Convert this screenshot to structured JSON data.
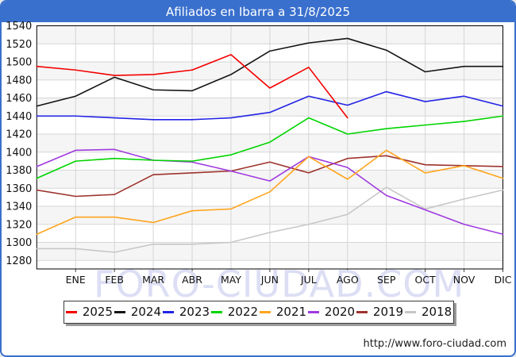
{
  "window": {
    "title": "Afiliados en Ibarra a 31/8/2025"
  },
  "footer": {
    "url": "http://www.foro-ciudad.com"
  },
  "watermark": {
    "text": "FORO-CIUDAD.COM",
    "color": "#dcdef4"
  },
  "colors": {
    "titlebar": "#3a70cd",
    "frame": "#3a70cd",
    "grid": "#d6d6d6",
    "band": "#f5f5f5",
    "axis": "#000000",
    "tick": "#444444",
    "label": "#111111"
  },
  "chart_data": {
    "type": "line",
    "title": "Afiliados en Ibarra a 31/8/2025",
    "x_labels": [
      "ENE",
      "FEB",
      "MAR",
      "ABR",
      "MAY",
      "JUN",
      "JUL",
      "AGO",
      "SEP",
      "OCT",
      "NOV",
      "DIC"
    ],
    "y_ticks": [
      1280,
      1300,
      1320,
      1340,
      1360,
      1380,
      1400,
      1420,
      1440,
      1460,
      1480,
      1500,
      1520,
      1540
    ],
    "ylim": [
      1280,
      1540
    ],
    "grid": true,
    "legend_position": "bottom",
    "note": "First value of each series is drawn at the left axis edge (previous December); months ENE-DIC follow at each gridline. 2025 series ends at AGO.",
    "series": [
      {
        "name": "2025",
        "color": "#f40000",
        "values": [
          1495,
          1491,
          1485,
          1486,
          1491,
          1508,
          1471,
          1494,
          1438
        ]
      },
      {
        "name": "2024",
        "color": "#141414",
        "values": [
          1451,
          1462,
          1483,
          1469,
          1468,
          1486,
          1512,
          1521,
          1526,
          1513,
          1489,
          1495,
          1495
        ]
      },
      {
        "name": "2023",
        "color": "#2323e6",
        "values": [
          1440,
          1440,
          1438,
          1436,
          1436,
          1438,
          1444,
          1462,
          1452,
          1467,
          1456,
          1462,
          1451
        ]
      },
      {
        "name": "2022",
        "color": "#00d400",
        "values": [
          1371,
          1390,
          1393,
          1391,
          1390,
          1397,
          1411,
          1438,
          1420,
          1426,
          1430,
          1434,
          1440
        ]
      },
      {
        "name": "2021",
        "color": "#ffa51e",
        "values": [
          1309,
          1328,
          1328,
          1322,
          1335,
          1337,
          1356,
          1395,
          1370,
          1402,
          1377,
          1385,
          1371
        ]
      },
      {
        "name": "2020",
        "color": "#a03ae0",
        "values": [
          1384,
          1402,
          1403,
          1391,
          1389,
          1379,
          1368,
          1395,
          1383,
          1352,
          1336,
          1320,
          1309
        ]
      },
      {
        "name": "2019",
        "color": "#9e332d",
        "values": [
          1358,
          1351,
          1353,
          1375,
          1377,
          1379,
          1389,
          1377,
          1393,
          1396,
          1386,
          1385,
          1384
        ]
      },
      {
        "name": "2018",
        "color": "#c7c7c7",
        "values": [
          1293,
          1293,
          1289,
          1298,
          1298,
          1300,
          1311,
          1320,
          1331,
          1361,
          1337,
          1348,
          1358
        ]
      }
    ]
  }
}
